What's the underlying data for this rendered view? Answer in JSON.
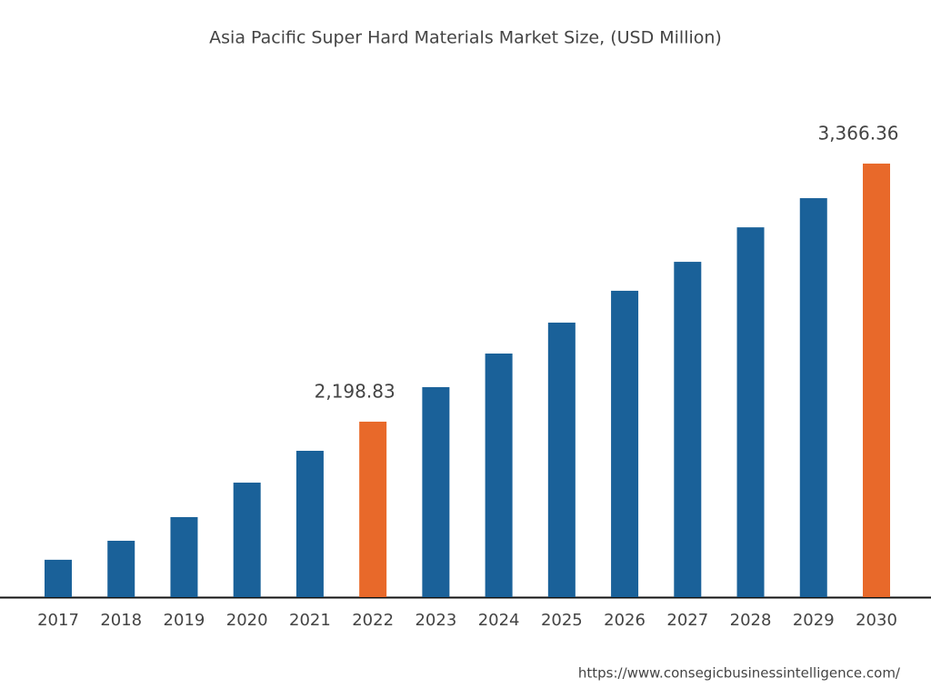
{
  "chart_data": {
    "type": "bar",
    "title": "Asia Pacific Super Hard Materials Market Size, (USD Million)",
    "categories": [
      "2017",
      "2018",
      "2019",
      "2020",
      "2021",
      "2022",
      "2023",
      "2024",
      "2025",
      "2026",
      "2027",
      "2028",
      "2029",
      "2030"
    ],
    "values": [
      1574,
      1660,
      1767,
      1923,
      2067,
      2198.83,
      2355,
      2507,
      2647,
      2791,
      2922,
      3078,
      3210,
      3366.36
    ],
    "value_labels": [
      null,
      null,
      null,
      null,
      null,
      "2,198.83",
      null,
      null,
      null,
      null,
      null,
      null,
      null,
      "3,366.36"
    ],
    "colors": [
      "#1a6199",
      "#1a6199",
      "#1a6199",
      "#1a6199",
      "#1a6199",
      "#e8692a",
      "#1a6199",
      "#1a6199",
      "#1a6199",
      "#1a6199",
      "#1a6199",
      "#1a6199",
      "#1a6199",
      "#e8692a"
    ],
    "ylim": [
      1405,
      3572
    ],
    "source": "https://www.consegicbusinessintelligence.com/"
  }
}
